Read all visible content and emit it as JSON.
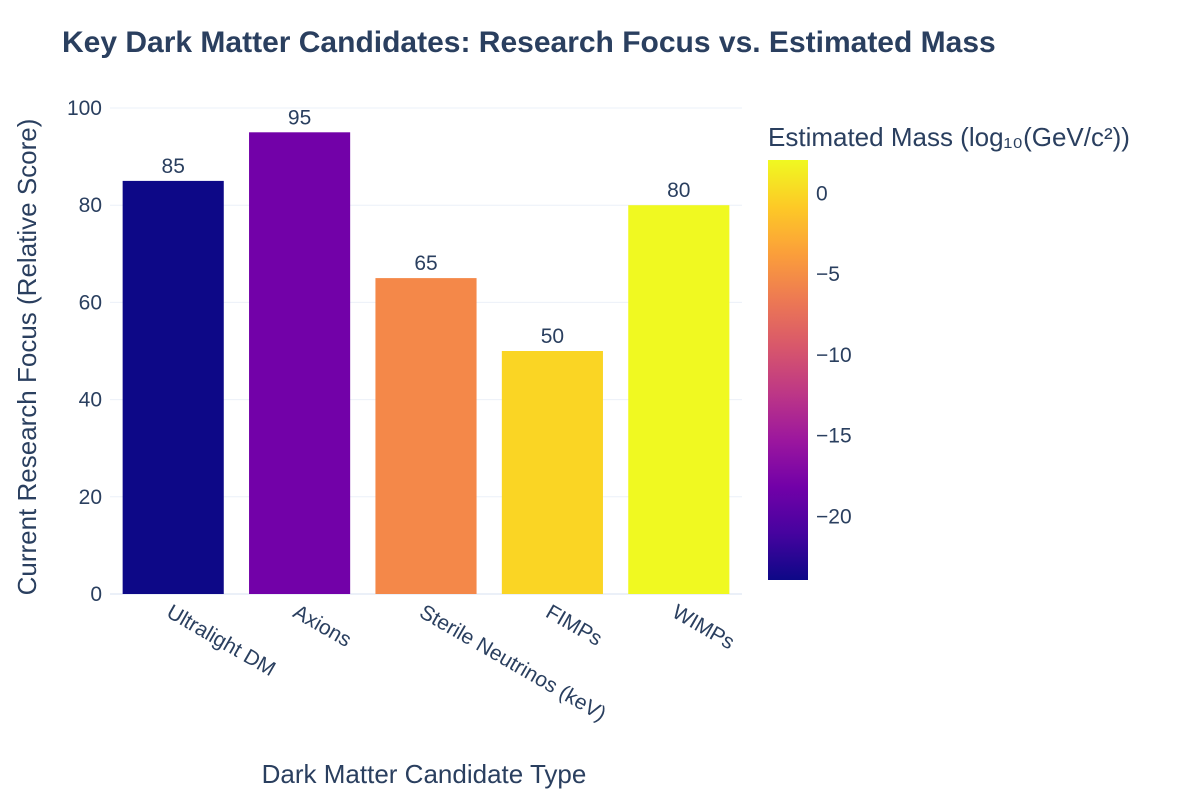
{
  "chart_data": {
    "type": "bar",
    "title": "Key Dark Matter Candidates: Research Focus vs. Estimated Mass",
    "xlabel": "Dark Matter Candidate Type",
    "ylabel": "Current Research Focus (Relative Score)",
    "categories": [
      "Ultralight DM",
      "Axions",
      "Sterile Neutrinos (keV)",
      "FIMPs",
      "WIMPs"
    ],
    "values": [
      85,
      95,
      65,
      50,
      80
    ],
    "bar_colors": [
      "#0d0887",
      "#7201a8",
      "#f48849",
      "#fad524",
      "#f0f921"
    ],
    "estimated_mass_log10": [
      -24,
      -20,
      -5,
      0,
      2
    ],
    "ylim": [
      0,
      100
    ],
    "yticks": [
      0,
      20,
      40,
      60,
      80,
      100
    ],
    "grid": true,
    "colorbar": {
      "title": "Estimated Mass (log₁₀(GeV/c²))",
      "range": [
        -24,
        2
      ],
      "ticks": [
        0,
        -5,
        -10,
        -15,
        -20
      ],
      "tick_labels": [
        "0",
        "−5",
        "−10",
        "−15",
        "−20"
      ],
      "colorscale": [
        "#0d0887",
        "#46039f",
        "#7201a8",
        "#9c179e",
        "#bd3786",
        "#d8576b",
        "#ed7953",
        "#fb9f3a",
        "#fdca26",
        "#f0f921"
      ]
    }
  }
}
